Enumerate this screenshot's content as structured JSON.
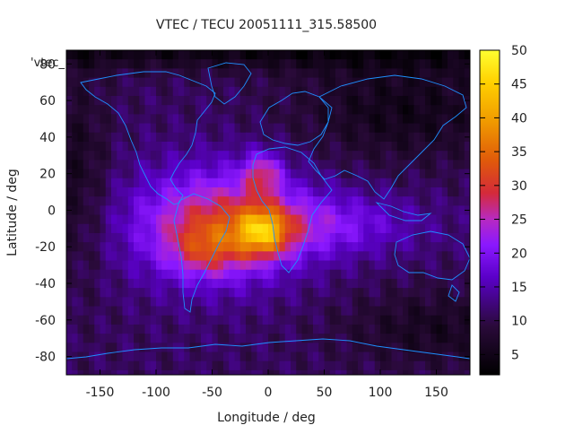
{
  "chart_data": {
    "type": "heatmap",
    "title": "VTEC / TECU 20051111_315.58500",
    "xlabel": "Longitude / deg",
    "ylabel": "Latitude / deg",
    "xlim": [
      -180,
      180
    ],
    "ylim": [
      -90,
      87.5
    ],
    "xticks": [
      -150,
      -100,
      -50,
      0,
      50,
      100,
      150
    ],
    "yticks": [
      -80,
      -60,
      -40,
      -20,
      0,
      20,
      40,
      60,
      80
    ],
    "xtick_labels": [
      "-150",
      "-100",
      "-50",
      "0",
      "50",
      "100",
      "150"
    ],
    "ytick_labels": [
      "-80",
      "-60",
      "-40",
      "-20",
      "0",
      "20",
      "40",
      "60",
      "80"
    ],
    "series_label": "'vtec_",
    "colorbar": {
      "range": [
        2,
        50
      ],
      "ticks": [
        5,
        10,
        15,
        20,
        25,
        30,
        35,
        40,
        45,
        50
      ],
      "tick_labels": [
        "5",
        "10",
        "15",
        "20",
        "25",
        "30",
        "35",
        "40",
        "45",
        "50"
      ]
    },
    "grid": false,
    "overlay": "world coastlines"
  }
}
